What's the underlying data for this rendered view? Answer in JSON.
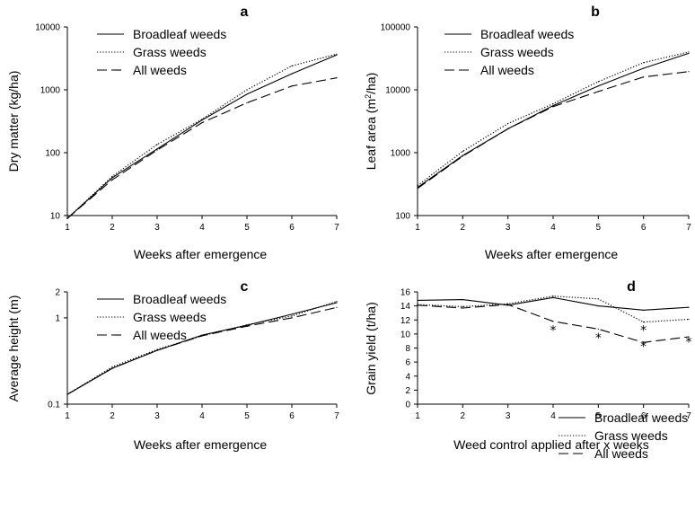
{
  "chart_data": [
    {
      "type": "line",
      "panel": "a",
      "x": [
        1,
        2,
        3,
        4,
        5,
        6,
        7
      ],
      "xlabel": "Weeks after emergence",
      "ylabel": "Dry matter (kg/ha)",
      "yscale": "log",
      "ylim": [
        10,
        10000
      ],
      "yticks": [
        10,
        100,
        1000,
        10000
      ],
      "yticklabels": [
        "10",
        "100",
        "1000",
        "10000"
      ],
      "xlim": [
        1,
        7
      ],
      "legend": "top-left",
      "series": [
        {
          "name": "Broadleaf weeds",
          "style": "solid",
          "values": [
            9,
            40,
            115,
            330,
            850,
            1800,
            3600
          ]
        },
        {
          "name": "Grass weeds",
          "style": "dotted",
          "values": [
            9,
            42,
            135,
            340,
            1000,
            2400,
            3700
          ]
        },
        {
          "name": "All weeds",
          "style": "dashed",
          "values": [
            9,
            37,
            110,
            300,
            620,
            1150,
            1550
          ]
        }
      ]
    },
    {
      "type": "line",
      "panel": "b",
      "x": [
        1,
        2,
        3,
        4,
        5,
        6,
        7
      ],
      "xlabel": "Weeks after emergence",
      "ylabel_main": "Leaf area (m",
      "ylabel_sup": "2",
      "ylabel_end": "/ha)",
      "yscale": "log",
      "ylim": [
        100,
        100000
      ],
      "yticks": [
        100,
        1000,
        10000,
        100000
      ],
      "yticklabels": [
        "100",
        "1000",
        "10000",
        "100000"
      ],
      "xlim": [
        1,
        7
      ],
      "legend": "top-left",
      "series": [
        {
          "name": "Broadleaf weeds",
          "style": "solid",
          "values": [
            280,
            900,
            2400,
            5600,
            11500,
            22000,
            38000
          ]
        },
        {
          "name": "Grass weeds",
          "style": "dotted",
          "values": [
            300,
            1050,
            2900,
            6000,
            13500,
            27000,
            40000
          ]
        },
        {
          "name": "All weeds",
          "style": "dashed",
          "values": [
            270,
            880,
            2400,
            5400,
            9400,
            16000,
            19500
          ]
        }
      ]
    },
    {
      "type": "line",
      "panel": "c",
      "x": [
        1,
        2,
        3,
        4,
        5,
        6,
        7
      ],
      "xlabel": "Weeks after emergence",
      "ylabel": "Average height (m)",
      "yscale": "log",
      "ylim": [
        0.1,
        2
      ],
      "yticks": [
        0.1,
        1,
        2
      ],
      "yticklabels": [
        "0.1",
        "1",
        "2"
      ],
      "xlim": [
        1,
        7
      ],
      "legend": "top-left",
      "series": [
        {
          "name": "Broadleaf weeds",
          "style": "solid",
          "values": [
            0.13,
            0.26,
            0.42,
            0.63,
            0.82,
            1.1,
            1.5
          ]
        },
        {
          "name": "Grass weeds",
          "style": "dotted",
          "values": [
            0.13,
            0.27,
            0.43,
            0.62,
            0.83,
            1.05,
            1.55
          ]
        },
        {
          "name": "All weeds",
          "style": "dashed",
          "values": [
            0.13,
            0.26,
            0.42,
            0.62,
            0.8,
            1.0,
            1.32
          ]
        }
      ]
    },
    {
      "type": "line",
      "panel": "d",
      "x": [
        1,
        2,
        3,
        4,
        5,
        6,
        7
      ],
      "xlabel": "Weed control applied after x weeks",
      "ylabel": "Grain yield (t/ha)",
      "yscale": "linear",
      "ylim": [
        0,
        16
      ],
      "yticks": [
        0,
        2,
        4,
        6,
        8,
        10,
        12,
        14,
        16
      ],
      "yticklabels": [
        "0",
        "2",
        "4",
        "6",
        "8",
        "10",
        "12",
        "14",
        "16"
      ],
      "xlim": [
        1,
        7
      ],
      "legend": "bottom-right",
      "series": [
        {
          "name": "Broadleaf weeds",
          "style": "solid",
          "values": [
            14.8,
            14.9,
            14.1,
            15.2,
            14.0,
            13.4,
            13.8
          ]
        },
        {
          "name": "Grass weeds",
          "style": "dotted",
          "values": [
            14.2,
            13.9,
            14.3,
            15.4,
            15.0,
            11.7,
            12.1
          ]
        },
        {
          "name": "All weeds",
          "style": "dashed",
          "values": [
            14.1,
            13.7,
            14.2,
            11.8,
            10.7,
            8.8,
            9.6
          ]
        }
      ],
      "significance_marks": [
        {
          "x": 4,
          "y": 10.7,
          "label": "*"
        },
        {
          "x": 5,
          "y": 9.6,
          "label": "*"
        },
        {
          "x": 6,
          "y": 10.7,
          "label": "*"
        },
        {
          "x": 6,
          "y": 8.4,
          "label": "*"
        },
        {
          "x": 7,
          "y": 9.0,
          "label": "*"
        }
      ]
    }
  ]
}
